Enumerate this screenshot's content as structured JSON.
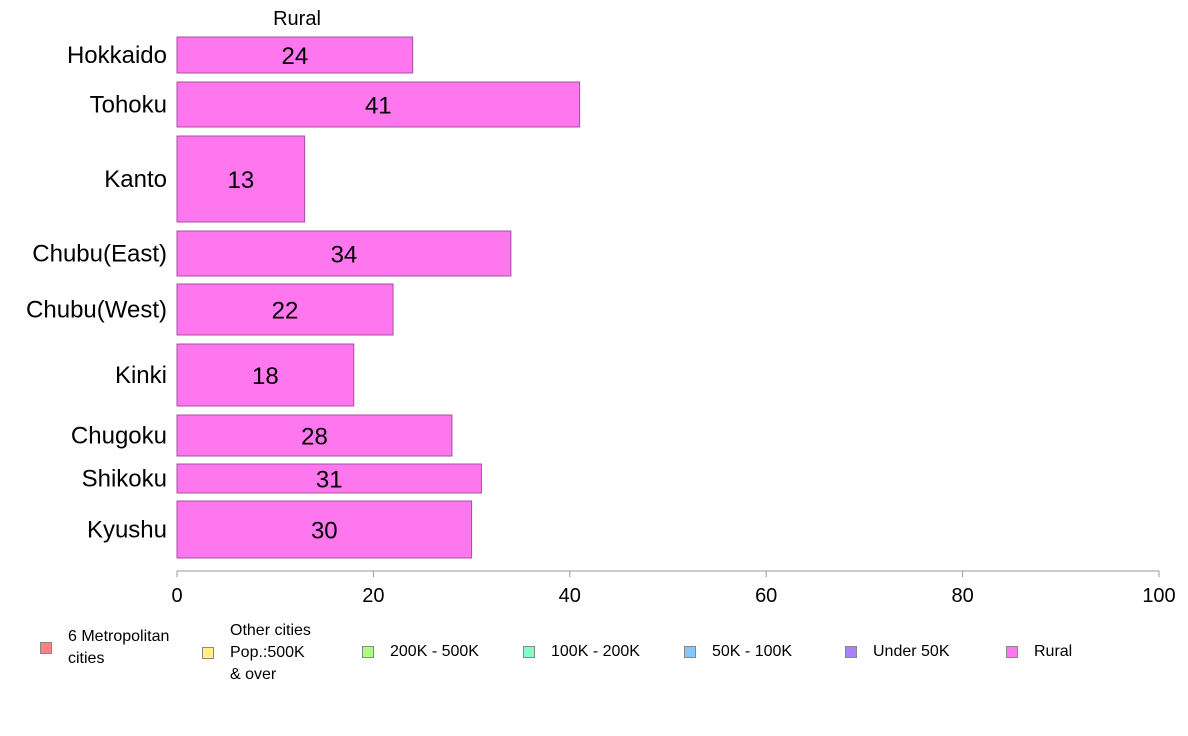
{
  "chart_data": {
    "type": "bar",
    "orientation": "horizontal",
    "title": "Rural",
    "categories": [
      "Hokkaido",
      "Tohoku",
      "Kanto",
      "Chubu(East)",
      "Chubu(West)",
      "Kinki",
      "Chugoku",
      "Shikoku",
      "Kyushu"
    ],
    "series": [
      {
        "name": "Rural",
        "values": [
          24,
          41,
          13,
          34,
          22,
          18,
          28,
          31,
          30
        ],
        "color": "#ff77ee"
      }
    ],
    "data_labels": [
      "24",
      "41",
      "13",
      "34",
      "22",
      "18",
      "28",
      "31",
      "30"
    ],
    "xlim": [
      0,
      100
    ],
    "xticks": [
      0,
      20,
      40,
      60,
      80,
      100
    ],
    "xlabel": "",
    "ylabel": "",
    "grid": false,
    "legend_position": "bottom",
    "legend": [
      {
        "label": "6 Metropolitan\n cities",
        "color": "#ff8080"
      },
      {
        "label": "Other cities\nPop.:500K\n & over",
        "color": "#ffee80"
      },
      {
        "label": "200K - 500K",
        "color": "#aaff80"
      },
      {
        "label": "100K - 200K",
        "color": "#80ffc8"
      },
      {
        "label": "50K - 100K",
        "color": "#80c8ff"
      },
      {
        "label": "Under 50K",
        "color": "#aa80ff"
      },
      {
        "label": "Rural",
        "color": "#ff77ee"
      }
    ]
  }
}
